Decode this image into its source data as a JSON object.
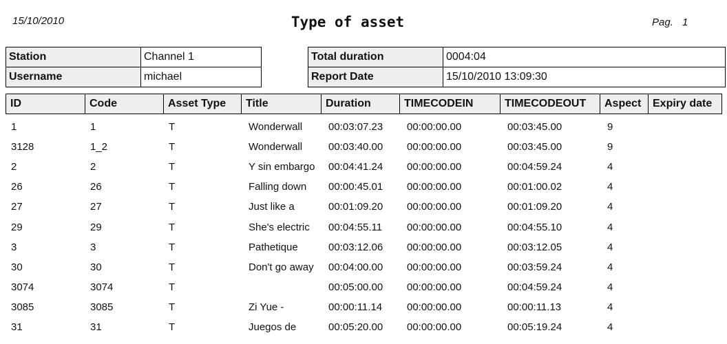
{
  "header": {
    "date": "15/10/2010",
    "title": "Type of asset",
    "page_label": "Pag.",
    "page_number": "1"
  },
  "info": {
    "left": [
      {
        "label": "Station",
        "value": "Channel 1"
      },
      {
        "label": "Username",
        "value": "michael"
      }
    ],
    "right": [
      {
        "label": "Total duration",
        "value": "0004:04"
      },
      {
        "label": "Report Date",
        "value": "15/10/2010 13:09:30"
      }
    ]
  },
  "table": {
    "columns": [
      "ID",
      "Code",
      "Asset Type",
      "Title",
      "Duration",
      "TIMECODEIN",
      "TIMECODEOUT",
      "Aspect",
      "Expiry date"
    ],
    "rows": [
      {
        "id": "1",
        "code": "1",
        "type": "T",
        "title": "Wonderwall",
        "duration": "00:03:07.23",
        "in": "00:00:00.00",
        "out": "00:03:45.00",
        "aspect": "9"
      },
      {
        "id": "3128",
        "code": "1_2",
        "type": "T",
        "title": "Wonderwall",
        "duration": "00:03:40.00",
        "in": "00:00:00.00",
        "out": "00:03:45.00",
        "aspect": "9"
      },
      {
        "id": "2",
        "code": "2",
        "type": "T",
        "title": "Y sin embargo",
        "duration": "00:04:41.24",
        "in": "00:00:00.00",
        "out": "00:04:59.24",
        "aspect": "4"
      },
      {
        "id": "26",
        "code": "26",
        "type": "T",
        "title": "Falling down",
        "duration": "00:00:45.01",
        "in": "00:00:00.00",
        "out": "00:01:00.02",
        "aspect": "4"
      },
      {
        "id": "27",
        "code": "27",
        "type": "T",
        "title": "Just like a",
        "duration": "00:01:09.20",
        "in": "00:00:00.00",
        "out": "00:01:09.20",
        "aspect": "4"
      },
      {
        "id": "29",
        "code": "29",
        "type": "T",
        "title": "She's electric",
        "duration": "00:04:55.11",
        "in": "00:00:00.00",
        "out": "00:04:55.10",
        "aspect": "4"
      },
      {
        "id": "3",
        "code": "3",
        "type": "T",
        "title": "Pathetique",
        "duration": "00:03:12.06",
        "in": "00:00:00.00",
        "out": "00:03:12.05",
        "aspect": "4"
      },
      {
        "id": "30",
        "code": "30",
        "type": "T",
        "title": "Don't go away",
        "duration": "00:04:00.00",
        "in": "00:00:00.00",
        "out": "00:03:59.24",
        "aspect": "4"
      },
      {
        "id": "3074",
        "code": "3074",
        "type": "T",
        "duration": "00:05:00.00",
        "in": "00:00:00.00",
        "out": "00:04:59.24",
        "aspect": "4"
      },
      {
        "id": "3085",
        "code": "3085",
        "type": "T",
        "title": "Zi Yue -",
        "duration": "00:00:11.14",
        "in": "00:00:00.00",
        "out": "00:00:11.13",
        "aspect": "4"
      },
      {
        "id": "31",
        "code": "31",
        "type": "T",
        "title": "Juegos de",
        "duration": "00:05:20.00",
        "in": "00:00:00.00",
        "out": "00:05:19.24",
        "aspect": "4"
      }
    ]
  }
}
